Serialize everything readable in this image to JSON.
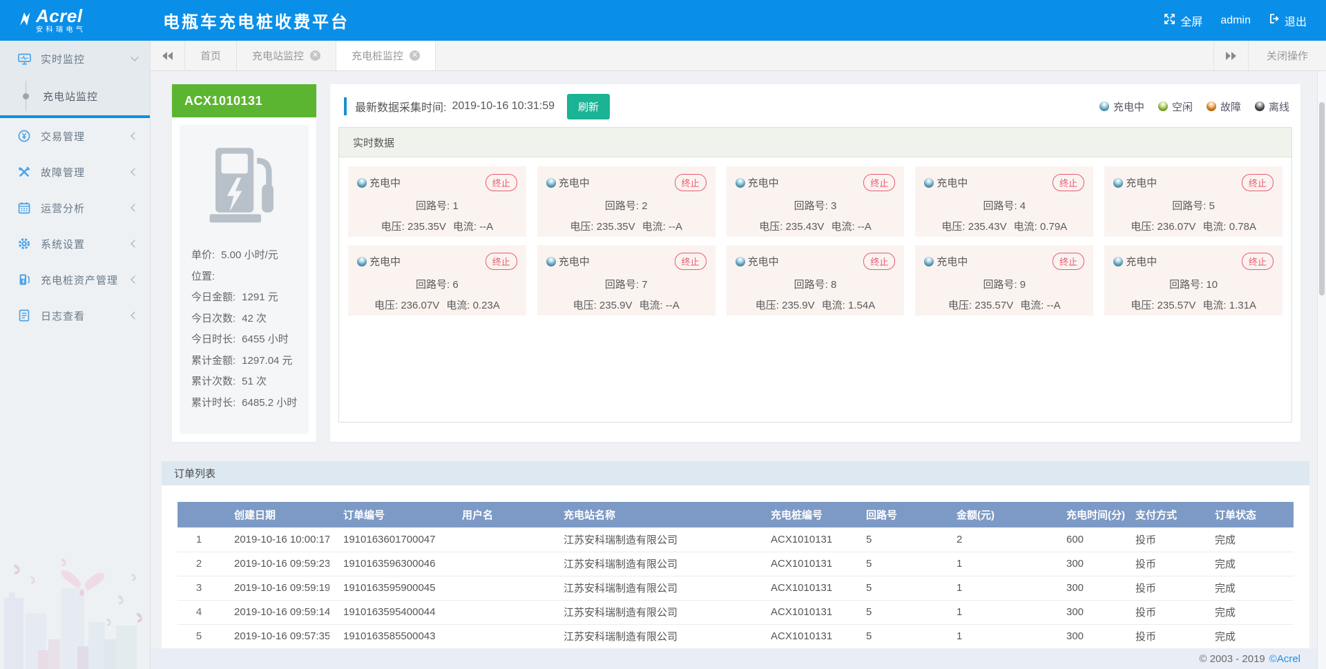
{
  "header": {
    "logo": {
      "brand": "Acrel",
      "sub": "安科瑞电气"
    },
    "title": "电瓶车充电桩收费平台",
    "fullscreen_label": "全屏",
    "username": "admin",
    "logout_label": "退出"
  },
  "tabbar": {
    "tabs": [
      {
        "label": "首页",
        "closable": false,
        "active": false
      },
      {
        "label": "充电站监控",
        "closable": true,
        "active": false
      },
      {
        "label": "充电桩监控",
        "closable": true,
        "active": true
      }
    ],
    "close_ops_label": "关闭操作"
  },
  "sidebar": {
    "items": [
      {
        "label": "实时监控",
        "icon": "realtime-monitor-icon",
        "expanded": true,
        "children": [
          {
            "label": "充电站监控",
            "active": true
          }
        ]
      },
      {
        "label": "交易管理",
        "icon": "transaction-icon"
      },
      {
        "label": "故障管理",
        "icon": "fault-icon"
      },
      {
        "label": "运营分析",
        "icon": "analysis-icon"
      },
      {
        "label": "系统设置",
        "icon": "settings-icon"
      },
      {
        "label": "充电桩资产管理",
        "icon": "asset-icon"
      },
      {
        "label": "日志查看",
        "icon": "log-icon"
      }
    ]
  },
  "pile_panel": {
    "pile_id": "ACX1010131",
    "info": [
      {
        "label": "单价:",
        "value": "5.00 小时/元"
      },
      {
        "label": "位置:",
        "value": ""
      },
      {
        "label": "今日金额:",
        "value": "1291 元"
      },
      {
        "label": "今日次数:",
        "value": "42 次"
      },
      {
        "label": "今日时长:",
        "value": "6455 小时"
      },
      {
        "label": "累计金额:",
        "value": "1297.04 元"
      },
      {
        "label": "累计次数:",
        "value": "51 次"
      },
      {
        "label": "累计时长:",
        "value": "6485.2 小时"
      }
    ]
  },
  "monitor": {
    "collect_label": "最新数据采集时间:",
    "collect_time": "2019-10-16 10:31:59",
    "refresh_label": "刷新",
    "legend": [
      {
        "label": "充电中",
        "color": "#6cb9d8"
      },
      {
        "label": "空闲",
        "color": "#9cc83e"
      },
      {
        "label": "故障",
        "color": "#f0891c"
      },
      {
        "label": "离线",
        "color": "#4d4d4d"
      }
    ],
    "section_title": "实时数据",
    "card": {
      "status_label": "充电中",
      "terminate_label": "终止",
      "circuit_label": "回路号:",
      "voltage_label": "电压:",
      "current_label": "电流:"
    },
    "circuits": [
      {
        "no": "1",
        "voltage": "235.35V",
        "current": "--A"
      },
      {
        "no": "2",
        "voltage": "235.35V",
        "current": "--A"
      },
      {
        "no": "3",
        "voltage": "235.43V",
        "current": "--A"
      },
      {
        "no": "4",
        "voltage": "235.43V",
        "current": "0.79A"
      },
      {
        "no": "5",
        "voltage": "236.07V",
        "current": "0.78A"
      },
      {
        "no": "6",
        "voltage": "236.07V",
        "current": "0.23A"
      },
      {
        "no": "7",
        "voltage": "235.9V",
        "current": "--A"
      },
      {
        "no": "8",
        "voltage": "235.9V",
        "current": "1.54A"
      },
      {
        "no": "9",
        "voltage": "235.57V",
        "current": "--A"
      },
      {
        "no": "10",
        "voltage": "235.57V",
        "current": "1.31A"
      }
    ]
  },
  "orders": {
    "section_title": "订单列表",
    "columns": [
      "创建日期",
      "订单编号",
      "用户名",
      "充电站名称",
      "充电桩编号",
      "回路号",
      "金额(元)",
      "充电时间(分)",
      "支付方式",
      "订单状态"
    ],
    "rows": [
      [
        "1",
        "2019-10-16 10:00:17",
        "1910163601700047",
        "",
        "江苏安科瑞制造有限公司",
        "ACX1010131",
        "5",
        "2",
        "600",
        "投币",
        "完成"
      ],
      [
        "2",
        "2019-10-16 09:59:23",
        "1910163596300046",
        "",
        "江苏安科瑞制造有限公司",
        "ACX1010131",
        "5",
        "1",
        "300",
        "投币",
        "完成"
      ],
      [
        "3",
        "2019-10-16 09:59:19",
        "1910163595900045",
        "",
        "江苏安科瑞制造有限公司",
        "ACX1010131",
        "5",
        "1",
        "300",
        "投币",
        "完成"
      ],
      [
        "4",
        "2019-10-16 09:59:14",
        "1910163595400044",
        "",
        "江苏安科瑞制造有限公司",
        "ACX1010131",
        "5",
        "1",
        "300",
        "投币",
        "完成"
      ],
      [
        "5",
        "2019-10-16 09:57:35",
        "1910163585500043",
        "",
        "江苏安科瑞制造有限公司",
        "ACX1010131",
        "5",
        "1",
        "300",
        "投币",
        "完成"
      ]
    ]
  },
  "footer": {
    "copyright": "© 2003 - 2019",
    "brand": "©Acrel"
  },
  "colors": {
    "header_blue": "#0a8fe9",
    "pile_header_green": "#5cb531",
    "refresh_teal": "#1ab394",
    "terminate_red": "#e85a6e",
    "table_header_blue": "#7d9ac6"
  }
}
